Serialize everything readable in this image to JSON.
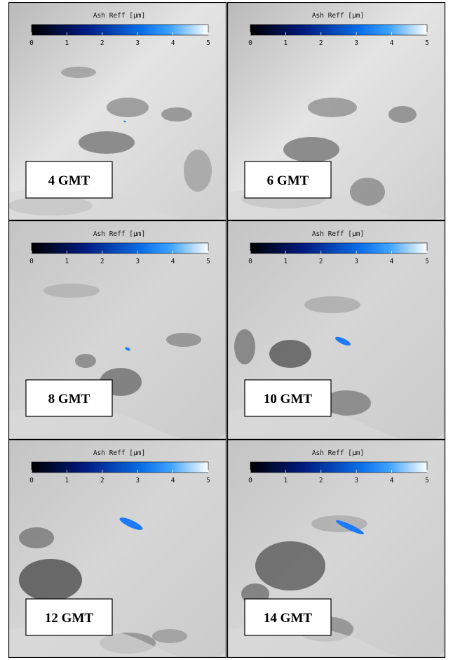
{
  "panels": [
    {
      "label": "4 GMT",
      "colorbar": {
        "title": "Ash Reff  [µm]",
        "ticks": [
          0,
          1,
          2,
          3,
          4,
          5
        ]
      }
    },
    {
      "label": "6 GMT",
      "colorbar": {
        "title": "Ash Reff  [µm]",
        "ticks": [
          0,
          1,
          2,
          3,
          4,
          5
        ]
      }
    },
    {
      "label": "8 GMT",
      "colorbar": {
        "title": "Ash Reff  [µm]",
        "ticks": [
          0,
          1,
          2,
          3,
          4,
          5
        ]
      }
    },
    {
      "label": "10 GMT",
      "colorbar": {
        "title": "Ash Reff  [µm]",
        "ticks": [
          0,
          1,
          2,
          3,
          4,
          5
        ]
      }
    },
    {
      "label": "12 GMT",
      "colorbar": {
        "title": "Ash Reff  [µm]",
        "ticks": [
          0,
          1,
          2,
          3,
          4,
          5
        ]
      }
    },
    {
      "label": "14 GMT",
      "colorbar": {
        "title": "Ash Reff  [µm]",
        "ticks": [
          0,
          1,
          2,
          3,
          4,
          5
        ]
      }
    }
  ]
}
